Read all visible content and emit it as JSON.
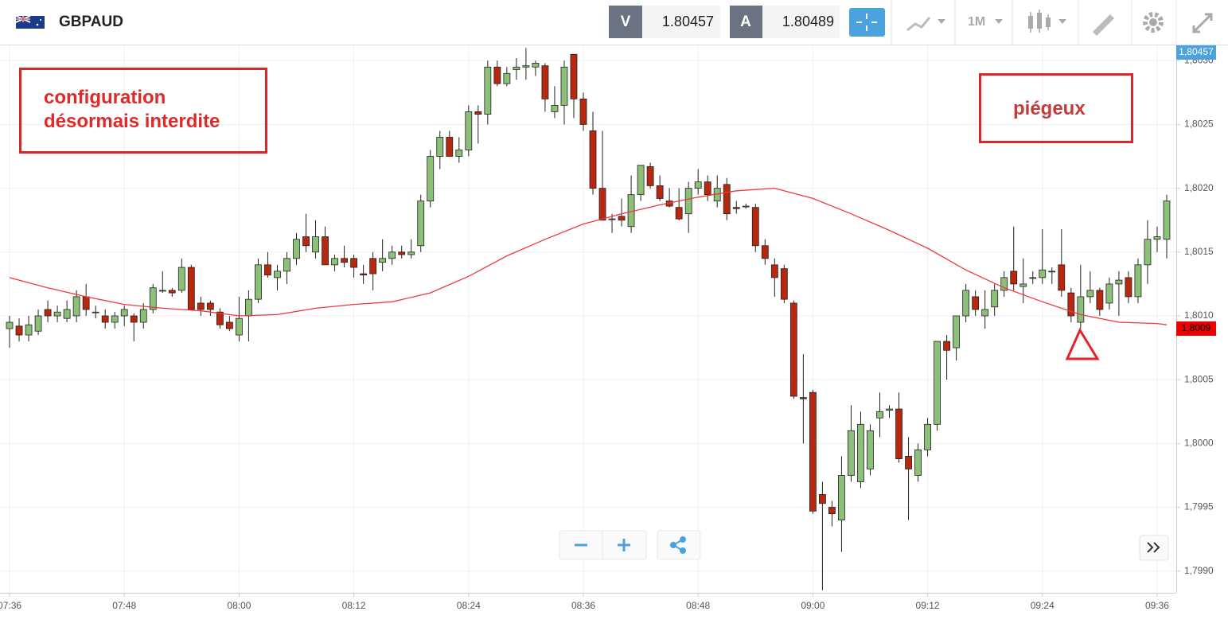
{
  "header": {
    "symbol": "GBPAUD",
    "bid_label": "V",
    "bid": "1.80457",
    "ask_label": "A",
    "ask": "1.80489",
    "timeframe": "1M"
  },
  "chart_data": {
    "type": "candlestick",
    "annotations": [
      "configuration désormais interdite",
      "piégeux"
    ],
    "x": [
      "07:36",
      "07:37",
      "07:38",
      "07:39",
      "07:40",
      "07:41",
      "07:42",
      "07:43",
      "07:44",
      "07:45",
      "07:46",
      "07:47",
      "07:48",
      "07:49",
      "07:50",
      "07:51",
      "07:52",
      "07:53",
      "07:54",
      "07:55",
      "07:56",
      "07:57",
      "07:58",
      "07:59",
      "08:00",
      "08:01",
      "08:02",
      "08:03",
      "08:04",
      "08:05",
      "08:06",
      "08:07",
      "08:08",
      "08:09",
      "08:10",
      "08:11",
      "08:12",
      "08:13",
      "08:14",
      "08:15",
      "08:16",
      "08:17",
      "08:18",
      "08:19",
      "08:20",
      "08:21",
      "08:22",
      "08:23",
      "08:24",
      "08:25",
      "08:26",
      "08:27",
      "08:28",
      "08:29",
      "08:30",
      "08:31",
      "08:32",
      "08:33",
      "08:34",
      "08:35",
      "08:36",
      "08:37",
      "08:38",
      "08:39",
      "08:40",
      "08:41",
      "08:42",
      "08:43",
      "08:44",
      "08:45",
      "08:46",
      "08:47",
      "08:48",
      "08:49",
      "08:50",
      "08:51",
      "08:52",
      "08:53",
      "08:54",
      "08:55",
      "08:56",
      "08:57",
      "08:58",
      "08:59",
      "09:00",
      "09:01",
      "09:02",
      "09:03",
      "09:04",
      "09:05",
      "09:06",
      "09:07",
      "09:08",
      "09:09",
      "09:10",
      "09:11",
      "09:12",
      "09:13",
      "09:14",
      "09:15",
      "09:16",
      "09:17",
      "09:18",
      "09:19",
      "09:20",
      "09:21",
      "09:22",
      "09:23",
      "09:24",
      "09:25",
      "09:26",
      "09:27",
      "09:28",
      "09:29",
      "09:30",
      "09:31",
      "09:32",
      "09:33",
      "09:34",
      "09:35",
      "09:36",
      "09:37"
    ],
    "open": [
      1.8009,
      1.80092,
      1.80085,
      1.80088,
      1.80105,
      1.801,
      1.80098,
      1.801,
      1.80115,
      1.80103,
      1.801,
      1.80095,
      1.801,
      1.801,
      1.80095,
      1.80105,
      1.8012,
      1.8012,
      1.8012,
      1.80138,
      1.8011,
      1.8011,
      1.80103,
      1.80095,
      1.80085,
      1.801,
      1.80113,
      1.8014,
      1.8013,
      1.80135,
      1.80145,
      1.80162,
      1.8015,
      1.80162,
      1.8014,
      1.80145,
      1.80145,
      1.80133,
      1.80145,
      1.80142,
      1.80145,
      1.8015,
      1.80148,
      1.80155,
      1.8019,
      1.80225,
      1.8024,
      1.80225,
      1.8023,
      1.8026,
      1.80258,
      1.80295,
      1.80282,
      1.80293,
      1.80295,
      1.80295,
      1.80296,
      1.8026,
      1.80265,
      1.80305,
      1.8027,
      1.80245,
      1.802,
      1.80176,
      1.80178,
      1.8017,
      1.80195,
      1.80217,
      1.80202,
      1.8019,
      1.80185,
      1.8018,
      1.802,
      1.80205,
      1.8019,
      1.80203,
      1.80185,
      1.80186,
      1.80185,
      1.80155,
      1.8014,
      1.80137,
      1.8011,
      1.80036,
      1.8004,
      1.7996,
      1.7995,
      1.7994,
      1.79975,
      1.7997,
      1.7998,
      1.8002,
      1.80026,
      1.80027,
      1.7999,
      1.79975,
      1.79995,
      1.80015,
      1.8008,
      1.80075,
      1.801,
      1.80115,
      1.801,
      1.80107,
      1.8012,
      1.80135,
      1.80123,
      1.8013,
      1.8013,
      1.80135,
      1.8014,
      1.80118,
      1.80095,
      1.80115,
      1.8012,
      1.8011,
      1.80125,
      1.8013,
      1.80115,
      1.8014,
      1.8016,
      1.8016
    ],
    "high": [
      1.801,
      1.80098,
      1.801,
      1.80105,
      1.80112,
      1.80108,
      1.80112,
      1.8012,
      1.80125,
      1.80108,
      1.80105,
      1.80103,
      1.80108,
      1.80102,
      1.8011,
      1.80125,
      1.80135,
      1.80122,
      1.80145,
      1.8014,
      1.80115,
      1.80112,
      1.80106,
      1.801,
      1.80115,
      1.8012,
      1.80145,
      1.8015,
      1.8014,
      1.8015,
      1.80165,
      1.8018,
      1.80175,
      1.8017,
      1.80148,
      1.80155,
      1.80148,
      1.8014,
      1.8015,
      1.8016,
      1.80155,
      1.80155,
      1.8016,
      1.80195,
      1.8023,
      1.80245,
      1.80245,
      1.8024,
      1.80265,
      1.80265,
      1.803,
      1.803,
      1.80295,
      1.80302,
      1.8031,
      1.803,
      1.80298,
      1.8028,
      1.803,
      1.80305,
      1.80275,
      1.8026,
      1.80245,
      1.8018,
      1.80192,
      1.8021,
      1.80218,
      1.8022,
      1.8021,
      1.802,
      1.802,
      1.80205,
      1.80215,
      1.8021,
      1.8021,
      1.80208,
      1.8019,
      1.80188,
      1.80188,
      1.8016,
      1.80145,
      1.8014,
      1.80112,
      1.8007,
      1.80042,
      1.7997,
      1.79955,
      1.7999,
      1.8003,
      1.80025,
      1.80015,
      1.8004,
      1.8003,
      1.8004,
      1.80005,
      1.8,
      1.8002,
      1.8008,
      1.80085,
      1.801,
      1.80125,
      1.8012,
      1.8012,
      1.80125,
      1.80135,
      1.8017,
      1.80145,
      1.80135,
      1.80168,
      1.80138,
      1.80168,
      1.80122,
      1.8014,
      1.80135,
      1.80122,
      1.8013,
      1.80135,
      1.80135,
      1.80145,
      1.80175,
      1.8017,
      1.80195
    ],
    "low": [
      1.80075,
      1.8008,
      1.8008,
      1.80085,
      1.80095,
      1.80095,
      1.80095,
      1.80095,
      1.801,
      1.80098,
      1.8009,
      1.8009,
      1.80092,
      1.8008,
      1.8009,
      1.80102,
      1.80118,
      1.80115,
      1.80118,
      1.80105,
      1.801,
      1.801,
      1.8009,
      1.80088,
      1.8008,
      1.8008,
      1.8011,
      1.8013,
      1.8012,
      1.80125,
      1.8014,
      1.8015,
      1.80145,
      1.8014,
      1.80135,
      1.80138,
      1.8013,
      1.80125,
      1.8012,
      1.80135,
      1.8014,
      1.80145,
      1.80145,
      1.8015,
      1.80185,
      1.80215,
      1.80225,
      1.8022,
      1.80225,
      1.80235,
      1.8025,
      1.8028,
      1.8028,
      1.80285,
      1.80285,
      1.80288,
      1.8026,
      1.80255,
      1.8025,
      1.80255,
      1.80245,
      1.80195,
      1.80175,
      1.80165,
      1.8017,
      1.80165,
      1.8019,
      1.802,
      1.8019,
      1.80185,
      1.80175,
      1.80165,
      1.80195,
      1.8019,
      1.80185,
      1.80175,
      1.8018,
      1.80184,
      1.8015,
      1.8014,
      1.80115,
      1.8011,
      1.80035,
      1.8,
      1.79945,
      1.79885,
      1.79935,
      1.79915,
      1.7997,
      1.79965,
      1.79975,
      1.80005,
      1.8002,
      1.79985,
      1.7994,
      1.7997,
      1.7999,
      1.8001,
      1.8005,
      1.80065,
      1.80095,
      1.801,
      1.8009,
      1.801,
      1.80115,
      1.8012,
      1.8011,
      1.80125,
      1.80125,
      1.80125,
      1.80115,
      1.80095,
      1.8009,
      1.8011,
      1.801,
      1.80105,
      1.801,
      1.8011,
      1.8011,
      1.80125,
      1.8015,
      1.80145
    ],
    "close": [
      1.80095,
      1.80085,
      1.80093,
      1.801,
      1.801,
      1.80103,
      1.80105,
      1.80115,
      1.80105,
      1.80103,
      1.80095,
      1.801,
      1.80105,
      1.80095,
      1.80105,
      1.80122,
      1.8012,
      1.80118,
      1.80138,
      1.80105,
      1.80105,
      1.80105,
      1.80093,
      1.8009,
      1.80098,
      1.80113,
      1.8014,
      1.80132,
      1.80135,
      1.80145,
      1.8016,
      1.80155,
      1.80162,
      1.8014,
      1.80145,
      1.80142,
      1.80138,
      1.80132,
      1.80133,
      1.80145,
      1.8015,
      1.80148,
      1.8015,
      1.8019,
      1.80225,
      1.8024,
      1.80225,
      1.8023,
      1.8026,
      1.80258,
      1.80295,
      1.80282,
      1.8029,
      1.80295,
      1.80296,
      1.80298,
      1.8027,
      1.80265,
      1.80295,
      1.8027,
      1.8025,
      1.802,
      1.80175,
      1.80176,
      1.80175,
      1.80195,
      1.80218,
      1.80202,
      1.80192,
      1.80186,
      1.80176,
      1.802,
      1.80205,
      1.80195,
      1.802,
      1.8018,
      1.80184,
      1.80186,
      1.80155,
      1.80145,
      1.8013,
      1.80113,
      1.80037,
      1.80035,
      1.79947,
      1.79953,
      1.79945,
      1.79975,
      1.8001,
      1.80015,
      1.8001,
      1.80025,
      1.80027,
      1.79988,
      1.7998,
      1.79995,
      1.80015,
      1.8008,
      1.80073,
      1.801,
      1.8012,
      1.80105,
      1.80105,
      1.8012,
      1.8013,
      1.80125,
      1.80125,
      1.8013,
      1.80136,
      1.80135,
      1.8012,
      1.801,
      1.80115,
      1.8012,
      1.80105,
      1.80125,
      1.80128,
      1.80115,
      1.8014,
      1.8016,
      1.80162,
      1.8019
    ],
    "up_color": "#8cbf78",
    "down_color": "#b8280e",
    "moving_average": {
      "color": "#f0393b",
      "x": [
        "07:36",
        "07:40",
        "07:44",
        "07:48",
        "07:52",
        "07:56",
        "08:00",
        "08:04",
        "08:08",
        "08:12",
        "08:16",
        "08:20",
        "08:24",
        "08:28",
        "08:32",
        "08:36",
        "08:40",
        "08:44",
        "08:48",
        "08:52",
        "08:56",
        "09:00",
        "09:04",
        "09:08",
        "09:12",
        "09:16",
        "09:20",
        "09:24",
        "09:28",
        "09:32",
        "09:36",
        "09:37"
      ],
      "values": [
        1.8013,
        1.80122,
        1.80115,
        1.80109,
        1.80106,
        1.80104,
        1.801,
        1.80101,
        1.80106,
        1.80109,
        1.80111,
        1.80118,
        1.80131,
        1.80147,
        1.8016,
        1.80172,
        1.8018,
        1.80187,
        1.80193,
        1.80198,
        1.802,
        1.80192,
        1.8018,
        1.80167,
        1.80153,
        1.80136,
        1.80122,
        1.80111,
        1.80101,
        1.80095,
        1.80094,
        1.80093
      ]
    },
    "price_markers": [
      {
        "value": 1.80457,
        "label": "1,80457",
        "color": "#4aa3df"
      },
      {
        "value": 1.8009,
        "label": "1,8009",
        "color": "#ee0000"
      }
    ],
    "xlim": [
      "07:35",
      "09:38"
    ],
    "xticks": [
      "07:36",
      "07:48",
      "08:00",
      "08:12",
      "08:24",
      "08:36",
      "08:48",
      "09:00",
      "09:12",
      "09:24",
      "09:36"
    ],
    "ylim": [
      1.79883,
      1.80312
    ],
    "yticks": [
      {
        "value": 1.799,
        "label": "1,7990"
      },
      {
        "value": 1.7995,
        "label": "1,7995"
      },
      {
        "value": 1.8,
        "label": "1,8000"
      },
      {
        "value": 1.8005,
        "label": "1,8005"
      },
      {
        "value": 1.801,
        "label": "1,8010"
      },
      {
        "value": 1.8015,
        "label": "1,8015"
      },
      {
        "value": 1.802,
        "label": "1,8020"
      },
      {
        "value": 1.8025,
        "label": "1,8025"
      },
      {
        "value": 1.803,
        "label": "1,8030"
      }
    ],
    "grid": true
  }
}
